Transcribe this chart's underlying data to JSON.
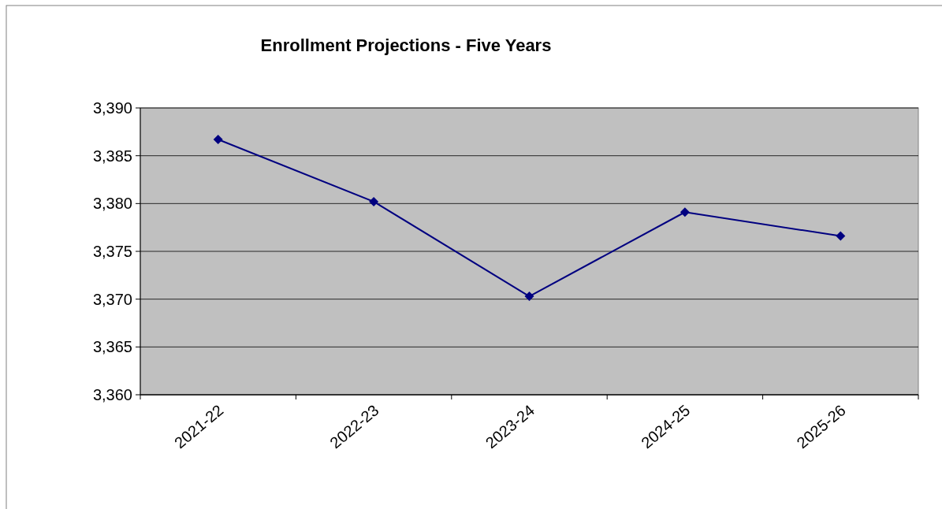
{
  "chart_data": {
    "type": "line",
    "title": "Enrollment Projections - Five Years",
    "categories": [
      "2021-22",
      "2022-23",
      "2023-24",
      "2024-25",
      "2025-26"
    ],
    "series": [
      {
        "color": "#000080",
        "values": [
          3386.7,
          3380.2,
          3370.3,
          3379.1,
          3376.6
        ]
      }
    ],
    "ylim": [
      3360,
      3390
    ],
    "yticks": [
      {
        "value": 3360,
        "label": "3,360"
      },
      {
        "value": 3365,
        "label": "3,365"
      },
      {
        "value": 3370,
        "label": "3,370"
      },
      {
        "value": 3375,
        "label": "3,375"
      },
      {
        "value": 3380,
        "label": "3,380"
      },
      {
        "value": 3385,
        "label": "3,385"
      },
      {
        "value": 3390,
        "label": "3,390"
      }
    ],
    "grid": "y",
    "marker": "diamond",
    "line_style": "solid"
  }
}
